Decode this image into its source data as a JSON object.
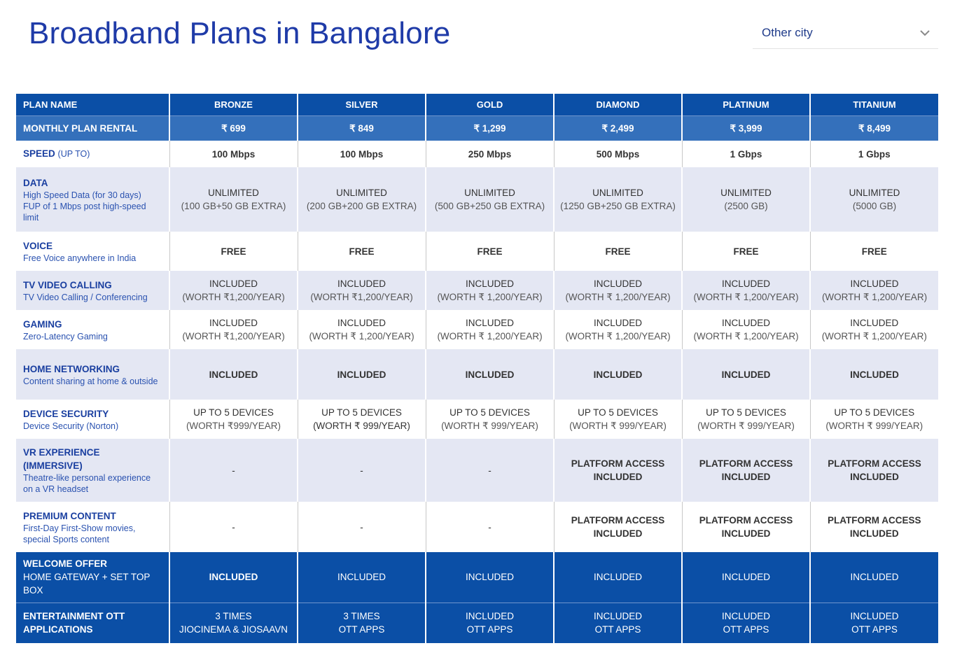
{
  "page": {
    "title": "Broadband Plans in Bangalore"
  },
  "city_select": {
    "label": "Other city"
  },
  "colors": {
    "title": "#1f3ba8",
    "header_bg": "#0b4fa6",
    "rent_bg": "#3470bb",
    "row_alt": "#e4e7f3",
    "label_blue": "#1a3fa0"
  },
  "table": {
    "plan_name_label": "PLAN NAME",
    "plans": [
      "BRONZE",
      "SILVER",
      "GOLD",
      "DIAMOND",
      "PLATINUM",
      "TITANIUM"
    ],
    "rental": {
      "label": "MONTHLY PLAN RENTAL",
      "values": [
        "₹ 699",
        "₹ 849",
        "₹ 1,299",
        "₹ 2,499",
        "₹ 3,999",
        "₹ 8,499"
      ]
    },
    "speed": {
      "label": "SPEED",
      "suffix": "(UP TO)",
      "values": [
        "100 Mbps",
        "100 Mbps",
        "250 Mbps",
        "500 Mbps",
        "1 Gbps",
        "1 Gbps"
      ]
    },
    "data": {
      "label": "DATA",
      "desc1": "High Speed Data (for 30 days)",
      "desc2": "FUP of 1 Mbps post high-speed limit",
      "main": "UNLIMITED",
      "values": [
        "(100 GB+50 GB EXTRA)",
        "(200 GB+200 GB EXTRA)",
        "(500 GB+250 GB EXTRA)",
        "(1250 GB+250 GB EXTRA)",
        "(2500 GB)",
        "(5000 GB)"
      ]
    },
    "voice": {
      "label": "VOICE",
      "desc": "Free Voice anywhere in India",
      "value": "FREE"
    },
    "tv_video_calling": {
      "label": "TV VIDEO CALLING",
      "desc": "TV Video Calling / Conferencing",
      "main": "INCLUDED",
      "values": [
        "(WORTH ₹1,200/YEAR)",
        "(WORTH ₹1,200/YEAR)",
        "(WORTH ₹ 1,200/YEAR)",
        "(WORTH ₹ 1,200/YEAR)",
        "(WORTH ₹ 1,200/YEAR)",
        "(WORTH ₹ 1,200/YEAR)"
      ]
    },
    "gaming": {
      "label": "GAMING",
      "desc": "Zero-Latency Gaming",
      "main": "INCLUDED",
      "values": [
        "(WORTH ₹1,200/YEAR)",
        "(WORTH ₹ 1,200/YEAR)",
        "(WORTH ₹ 1,200/YEAR)",
        "(WORTH ₹ 1,200/YEAR)",
        "(WORTH ₹ 1,200/YEAR)",
        "(WORTH ₹ 1,200/YEAR)"
      ]
    },
    "home_networking": {
      "label": "HOME NETWORKING",
      "desc": "Content sharing at home & outside",
      "value": "INCLUDED"
    },
    "device_security": {
      "label": "DEVICE SECURITY",
      "desc": "Device Security (Norton)",
      "main": "UP TO 5 DEVICES",
      "values": [
        "(WORTH ₹999/YEAR)",
        "(WORTH ₹ 999/YEAR)",
        "(WORTH ₹ 999/YEAR)",
        "(WORTH ₹ 999/YEAR)",
        "(WORTH ₹ 999/YEAR)",
        "(WORTH ₹ 999/YEAR)"
      ]
    },
    "vr": {
      "label": "VR EXPERIENCE (IMMERSIVE)",
      "desc": "Theatre-like personal experience on a VR headset",
      "dash": "-",
      "line1": "PLATFORM ACCESS",
      "line2": "INCLUDED"
    },
    "premium": {
      "label": "PREMIUM CONTENT",
      "desc": "First-Day First-Show movies, special Sports content",
      "dash": "-",
      "line1": "PLATFORM ACCESS",
      "line2": "INCLUDED"
    },
    "welcome": {
      "label": "WELCOME OFFER",
      "desc": "HOME GATEWAY +  SET TOP BOX",
      "value": "INCLUDED"
    },
    "ott": {
      "label": "ENTERTAINMENT OTT APPLICATIONS",
      "line1": [
        "3  TIMES",
        "3  TIMES",
        "INCLUDED",
        "INCLUDED",
        "INCLUDED",
        "INCLUDED"
      ],
      "line2": [
        "JIOCINEMA & JIOSAAVN",
        "OTT APPS",
        "OTT APPS",
        "OTT APPS",
        "OTT APPS",
        "OTT APPS"
      ]
    }
  }
}
